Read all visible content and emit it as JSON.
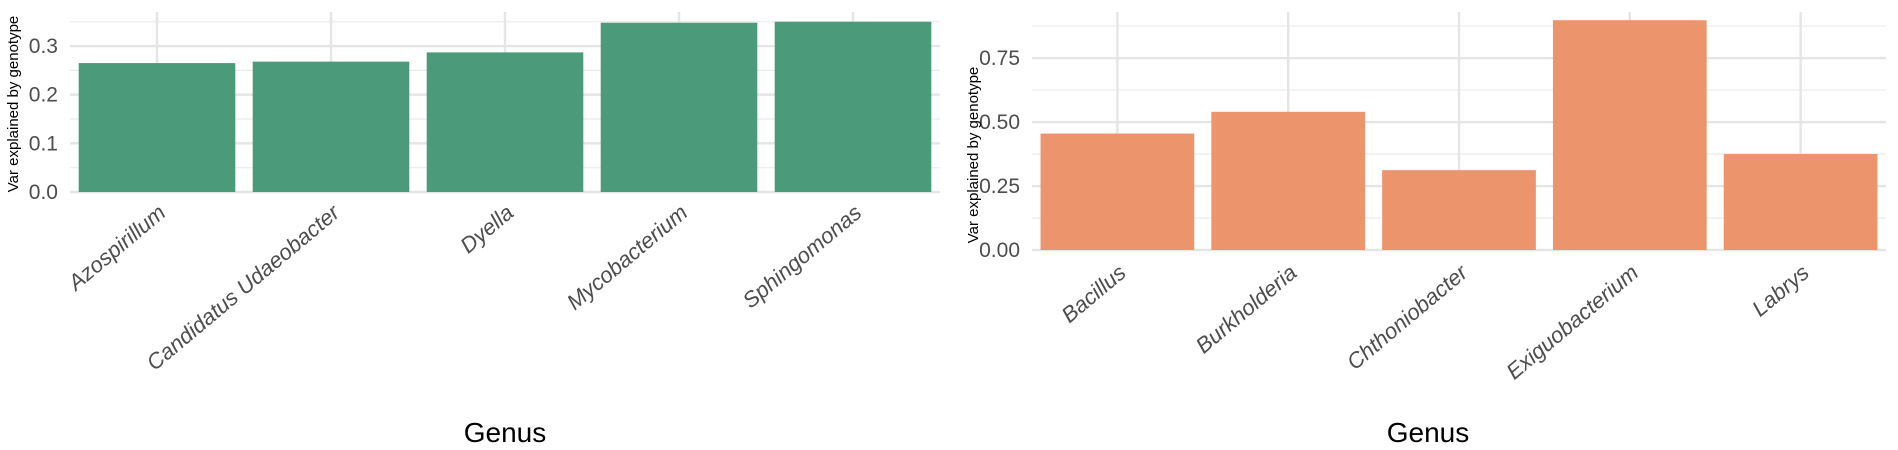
{
  "chart_data": [
    {
      "type": "bar",
      "categories": [
        "Azospirillum",
        "Candidatus Udaeobacter",
        "Dyella",
        "Mycobacterium",
        "Sphingomonas"
      ],
      "values": [
        0.265,
        0.268,
        0.287,
        0.348,
        0.35
      ],
      "title": "",
      "xlabel": "Genus",
      "ylabel": "Var explained by genotype",
      "ylim": [
        0,
        0.37
      ],
      "yticks": [
        "0.0",
        "0.1",
        "0.2",
        "0.3"
      ],
      "ytick_values": [
        0,
        0.1,
        0.2,
        0.3
      ],
      "color": "#4b9b7a",
      "grid": true,
      "legend": "none"
    },
    {
      "type": "bar",
      "categories": [
        "Bacillus",
        "Burkholderia",
        "Chthoniobacter",
        "Exiguobacterium",
        "Labrys"
      ],
      "values": [
        0.455,
        0.54,
        0.312,
        0.898,
        0.375
      ],
      "title": "",
      "xlabel": "Genus",
      "ylabel": "Var explained by genotype",
      "ylim": [
        0,
        0.93
      ],
      "yticks": [
        "0.00",
        "0.25",
        "0.50",
        "0.75"
      ],
      "ytick_values": [
        0,
        0.25,
        0.5,
        0.75
      ],
      "color": "#ec946b",
      "grid": true,
      "legend": "none"
    }
  ]
}
